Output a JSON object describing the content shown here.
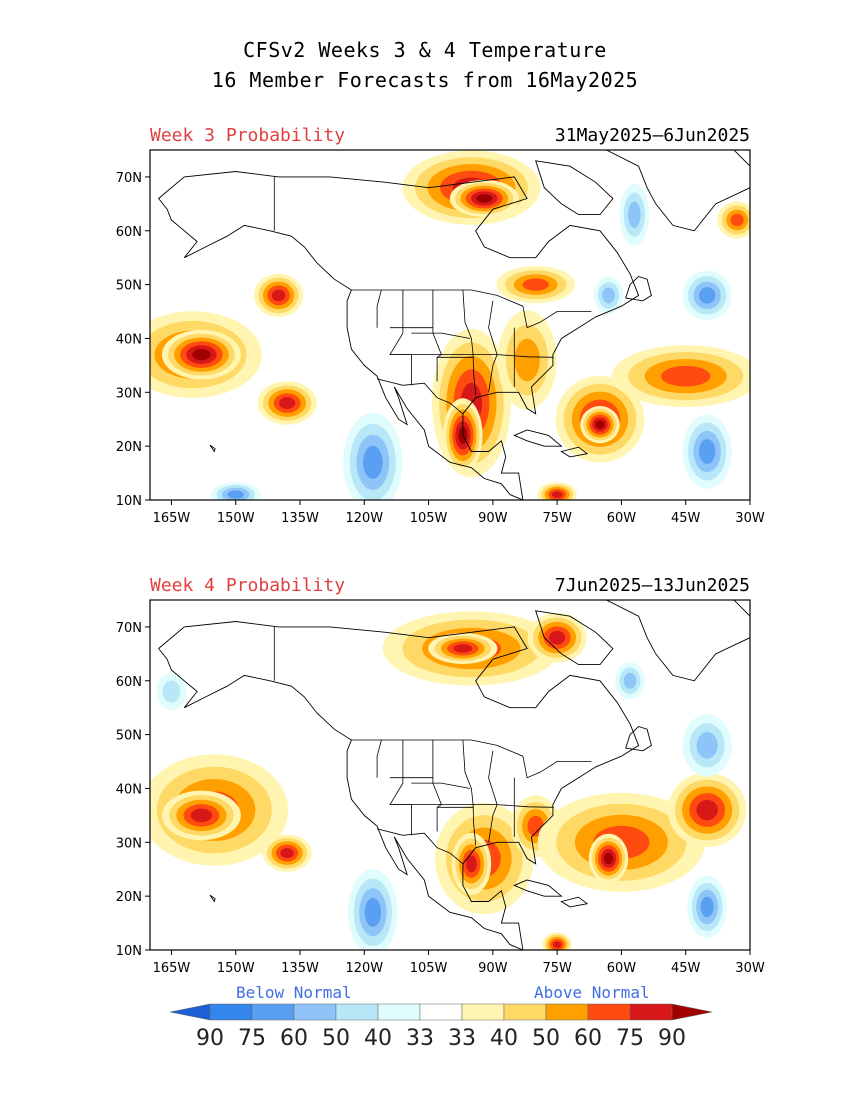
{
  "title": {
    "line1": "CFSv2 Weeks 3 & 4 Temperature",
    "line2": "16 Member Forecasts from 16May2025"
  },
  "panels": [
    {
      "label": "Week 3 Probability",
      "dates": "31May2025—6Jun2025",
      "blobs": [
        {
          "lon": -160,
          "lat": 37,
          "rx": 14,
          "ry": 7,
          "level": 3
        },
        {
          "lon": -158,
          "lat": 37,
          "rx": 8,
          "ry": 4,
          "level": 5
        },
        {
          "lon": -140,
          "lat": 48,
          "rx": 5,
          "ry": 3.5,
          "level": 4
        },
        {
          "lon": -138,
          "lat": 28,
          "rx": 6,
          "ry": 3.5,
          "level": 4
        },
        {
          "lon": -95,
          "lat": 68,
          "rx": 14,
          "ry": 6,
          "level": 4
        },
        {
          "lon": -92,
          "lat": 66,
          "rx": 7,
          "ry": 3,
          "level": 5
        },
        {
          "lon": -80,
          "lat": 50,
          "rx": 8,
          "ry": 3,
          "level": 3
        },
        {
          "lon": -95,
          "lat": 28,
          "rx": 8,
          "ry": 12,
          "level": 4
        },
        {
          "lon": -97,
          "lat": 22,
          "rx": 4,
          "ry": 6,
          "level": 5
        },
        {
          "lon": -82,
          "lat": 36,
          "rx": 6,
          "ry": 8,
          "level": 2
        },
        {
          "lon": -65,
          "lat": 25,
          "rx": 9,
          "ry": 7,
          "level": 4
        },
        {
          "lon": -65,
          "lat": 24,
          "rx": 4,
          "ry": 3,
          "level": 5
        },
        {
          "lon": -45,
          "lat": 33,
          "rx": 15,
          "ry": 5,
          "level": 3
        },
        {
          "lon": -33,
          "lat": 62,
          "rx": 4,
          "ry": 3,
          "level": 3
        },
        {
          "lon": -75,
          "lat": 11,
          "rx": 4,
          "ry": 2,
          "level": 4
        },
        {
          "lon": -118,
          "lat": 17,
          "rx": 6,
          "ry": 8,
          "level": -3
        },
        {
          "lon": -150,
          "lat": 11,
          "rx": 5,
          "ry": 2,
          "level": -3
        },
        {
          "lon": -40,
          "lat": 19,
          "rx": 5,
          "ry": 6,
          "level": -3
        },
        {
          "lon": -40,
          "lat": 48,
          "rx": 5,
          "ry": 4,
          "level": -3
        },
        {
          "lon": -57,
          "lat": 63,
          "rx": 3,
          "ry": 5,
          "level": -2
        },
        {
          "lon": -63,
          "lat": 48,
          "rx": 3,
          "ry": 3,
          "level": -2
        }
      ]
    },
    {
      "label": "Week 4 Probability",
      "dates": "7Jun2025—13Jun2025",
      "blobs": [
        {
          "lon": -155,
          "lat": 36,
          "rx": 15,
          "ry": 9,
          "level": 3
        },
        {
          "lon": -158,
          "lat": 35,
          "rx": 8,
          "ry": 4,
          "level": 4
        },
        {
          "lon": -138,
          "lat": 28,
          "rx": 5,
          "ry": 3,
          "level": 4
        },
        {
          "lon": -95,
          "lat": 66,
          "rx": 18,
          "ry": 6,
          "level": 3
        },
        {
          "lon": -97,
          "lat": 66,
          "rx": 7,
          "ry": 2.5,
          "level": 4
        },
        {
          "lon": -75,
          "lat": 68,
          "rx": 6,
          "ry": 4,
          "level": 4
        },
        {
          "lon": -92,
          "lat": 27,
          "rx": 10,
          "ry": 9,
          "level": 3
        },
        {
          "lon": -95,
          "lat": 26,
          "rx": 4,
          "ry": 5,
          "level": 4
        },
        {
          "lon": -80,
          "lat": 33,
          "rx": 5,
          "ry": 5,
          "level": 3
        },
        {
          "lon": -60,
          "lat": 30,
          "rx": 17,
          "ry": 8,
          "level": 3
        },
        {
          "lon": -63,
          "lat": 27,
          "rx": 4,
          "ry": 4,
          "level": 5
        },
        {
          "lon": -40,
          "lat": 36,
          "rx": 8,
          "ry": 6,
          "level": 4
        },
        {
          "lon": -75,
          "lat": 11,
          "rx": 3,
          "ry": 2,
          "level": 4
        },
        {
          "lon": -118,
          "lat": 17,
          "rx": 5,
          "ry": 7,
          "level": -3
        },
        {
          "lon": -40,
          "lat": 18,
          "rx": 4,
          "ry": 5,
          "level": -3
        },
        {
          "lon": -40,
          "lat": 48,
          "rx": 5,
          "ry": 5,
          "level": -2
        },
        {
          "lon": -58,
          "lat": 60,
          "rx": 3,
          "ry": 3,
          "level": -2
        },
        {
          "lon": -165,
          "lat": 58,
          "rx": 3,
          "ry": 3,
          "level": -1
        }
      ]
    }
  ],
  "axes": {
    "lon_labels": [
      "165W",
      "150W",
      "135W",
      "120W",
      "105W",
      "90W",
      "75W",
      "60W",
      "45W",
      "30W"
    ],
    "lon_values": [
      -165,
      -150,
      -135,
      -120,
      -105,
      -90,
      -75,
      -60,
      -45,
      -30
    ],
    "lat_labels": [
      "70N",
      "60N",
      "50N",
      "40N",
      "30N",
      "20N",
      "10N"
    ],
    "lat_values": [
      70,
      60,
      50,
      40,
      30,
      20,
      10
    ],
    "lon_range": [
      -170,
      -30
    ],
    "lat_range": [
      10,
      75
    ]
  },
  "legend": {
    "below_label": "Below Normal",
    "above_label": "Above Normal",
    "values": [
      "90",
      "75",
      "60",
      "50",
      "40",
      "33",
      "33",
      "40",
      "50",
      "60",
      "75",
      "90"
    ],
    "colors": [
      "#1e5fd8",
      "#3385eb",
      "#5aa0f2",
      "#8fc4f8",
      "#b8e8f8",
      "#e0fcfc",
      "#ffffff",
      "#fff5b0",
      "#ffd966",
      "#ffa000",
      "#ff4a10",
      "#d81818",
      "#a00000"
    ]
  },
  "colors": {
    "above_levels": [
      "#fff5b0",
      "#ffd966",
      "#ffa000",
      "#ff4a10",
      "#d81818",
      "#a00000"
    ],
    "below_levels": [
      "#e0fcfc",
      "#b8e8f8",
      "#8fc4f8",
      "#5aa0f2",
      "#3385eb",
      "#1e5fd8"
    ]
  }
}
